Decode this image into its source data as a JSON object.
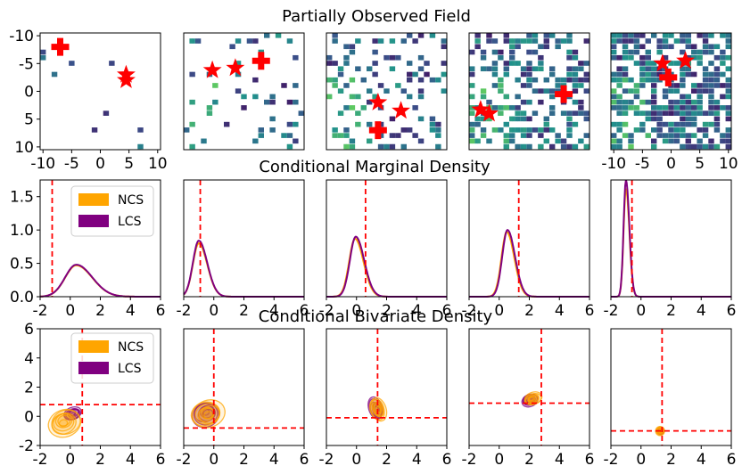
{
  "chart_data": {
    "row_titles": {
      "field": "Partially Observed Field",
      "marginal": "Conditional Marginal Density",
      "bivariate": "Conditional Bivariate Density"
    },
    "colors": {
      "NCS": "#FFA500",
      "LCS": "#800080",
      "marker": "#FF0000"
    },
    "legend": [
      "NCS",
      "LCS"
    ],
    "field_panels": {
      "type": "heatmap",
      "xlim": [
        -10.5,
        10.5
      ],
      "ylim": [
        10.5,
        -10.5
      ],
      "x_ticks": [
        "-10",
        "-5",
        "0",
        "5",
        "10"
      ],
      "y_ticks": [
        "-10",
        "-5",
        "0",
        "5",
        "10"
      ],
      "colormap": "viridis",
      "panels": [
        {
          "observed_fraction": 0.02,
          "crosses": [
            [
              -7,
              -8
            ]
          ],
          "stars": [
            [
              4.5,
              -3
            ],
            [
              4.5,
              -2
            ]
          ]
        },
        {
          "observed_fraction": 0.1,
          "crosses": [
            [
              3,
              -5.5
            ]
          ],
          "stars": [
            [
              -5.5,
              -3.8
            ],
            [
              -1.5,
              -4.2
            ]
          ]
        },
        {
          "observed_fraction": 0.25,
          "crosses": [
            [
              -1.5,
              7
            ]
          ],
          "stars": [
            [
              -1.5,
              2
            ],
            [
              2.5,
              3.5
            ]
          ]
        },
        {
          "observed_fraction": 0.45,
          "crosses": [
            [
              6,
              0.5
            ]
          ],
          "stars": [
            [
              -8.5,
              3.3
            ],
            [
              -7,
              4
            ]
          ]
        },
        {
          "observed_fraction": 0.65,
          "crosses": [
            [
              -0.5,
              -2.5
            ]
          ],
          "stars": [
            [
              -1.5,
              -5
            ],
            [
              2.5,
              -5.5
            ]
          ]
        }
      ]
    },
    "marginal_panels": {
      "type": "line",
      "xlim": [
        -2,
        6
      ],
      "ylim": [
        0,
        1.75
      ],
      "x_ticks": [
        "-2",
        "0",
        "2",
        "4",
        "6"
      ],
      "y_ticks": [
        "0.0",
        "0.5",
        "1.0",
        "1.5"
      ],
      "panels": [
        {
          "true_value": -1.2,
          "series": [
            {
              "name": "NCS",
              "mean": 0.4,
              "sd": 0.85,
              "peak": 0.47
            },
            {
              "name": "LCS",
              "mean": 0.4,
              "sd": 0.85,
              "peak": 0.48
            }
          ]
        },
        {
          "true_value": -0.9,
          "series": [
            {
              "name": "NCS",
              "mean": -1.0,
              "sd": 0.45,
              "peak": 0.8
            },
            {
              "name": "LCS",
              "mean": -1.0,
              "sd": 0.45,
              "peak": 0.84
            }
          ]
        },
        {
          "true_value": 0.6,
          "series": [
            {
              "name": "NCS",
              "mean": -0.1,
              "sd": 0.45,
              "peak": 0.87
            },
            {
              "name": "LCS",
              "mean": -0.05,
              "sd": 0.45,
              "peak": 0.9
            }
          ]
        },
        {
          "true_value": 1.3,
          "series": [
            {
              "name": "NCS",
              "mean": 0.5,
              "sd": 0.4,
              "peak": 0.97
            },
            {
              "name": "LCS",
              "mean": 0.55,
              "sd": 0.4,
              "peak": 1.0
            }
          ]
        },
        {
          "true_value": -0.6,
          "series": [
            {
              "name": "NCS",
              "mean": -1.0,
              "sd": 0.18,
              "peak": 1.62
            },
            {
              "name": "LCS",
              "mean": -1.0,
              "sd": 0.18,
              "peak": 1.75
            }
          ]
        }
      ]
    },
    "bivariate_panels": {
      "type": "scatter",
      "xlim": [
        -2,
        6
      ],
      "ylim": [
        -2,
        6
      ],
      "x_ticks": [
        "-2",
        "0",
        "2",
        "4",
        "6"
      ],
      "y_ticks": [
        "-2",
        "0",
        "2",
        "4",
        "6"
      ],
      "panels": [
        {
          "true_point": [
            0.8,
            0.8
          ],
          "series": [
            {
              "name": "NCS",
              "center": [
                -0.4,
                -0.4
              ],
              "spread": [
                1.1,
                0.9
              ]
            },
            {
              "name": "LCS",
              "center": [
                0.2,
                0.2
              ],
              "spread": [
                0.6,
                0.4
              ]
            }
          ]
        },
        {
          "true_point": [
            0.0,
            -0.8
          ],
          "series": [
            {
              "name": "NCS",
              "center": [
                -0.4,
                0.1
              ],
              "spread": [
                1.1,
                0.9
              ]
            },
            {
              "name": "LCS",
              "center": [
                -0.5,
                0.2
              ],
              "spread": [
                0.9,
                0.8
              ]
            }
          ]
        },
        {
          "true_point": [
            1.4,
            -0.1
          ],
          "series": [
            {
              "name": "NCS",
              "center": [
                1.4,
                0.5
              ],
              "spread": [
                0.5,
                0.8
              ]
            },
            {
              "name": "LCS",
              "center": [
                1.3,
                0.5
              ],
              "spread": [
                0.45,
                0.75
              ]
            }
          ]
        },
        {
          "true_point": [
            2.8,
            0.9
          ],
          "series": [
            {
              "name": "NCS",
              "center": [
                2.2,
                1.2
              ],
              "spread": [
                0.6,
                0.4
              ]
            },
            {
              "name": "LCS",
              "center": [
                2.0,
                1.1
              ],
              "spread": [
                0.55,
                0.4
              ]
            }
          ]
        },
        {
          "true_point": [
            1.4,
            -1.0
          ],
          "series": [
            {
              "name": "NCS",
              "center": [
                1.3,
                -1.0
              ],
              "spread": [
                0.3,
                0.3
              ]
            },
            {
              "name": "LCS",
              "center": [
                1.3,
                -1.0
              ],
              "spread": [
                0.25,
                0.25
              ]
            }
          ]
        }
      ]
    }
  }
}
